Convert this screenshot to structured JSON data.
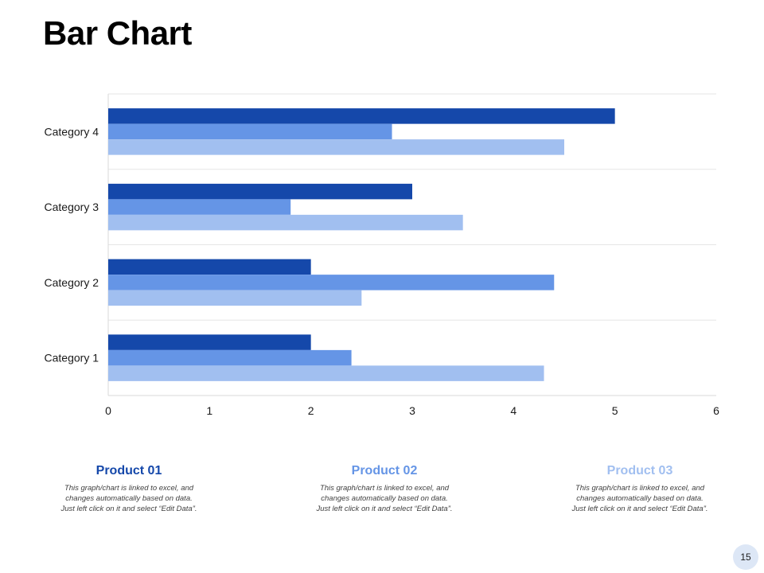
{
  "title": "Bar Chart",
  "chart_data": {
    "type": "bar",
    "orientation": "horizontal",
    "categories": [
      "Category 1",
      "Category 2",
      "Category 3",
      "Category 4"
    ],
    "series": [
      {
        "name": "Product 01",
        "color": "#1548aa",
        "values": [
          2,
          2,
          3,
          5
        ]
      },
      {
        "name": "Product 02",
        "color": "#6595e6",
        "values": [
          2.4,
          4.4,
          1.8,
          2.8
        ]
      },
      {
        "name": "Product 03",
        "color": "#a1bff0",
        "values": [
          4.3,
          2.5,
          3.5,
          4.5
        ]
      }
    ],
    "xlim": [
      0,
      6
    ],
    "xticks": [
      "0",
      "1",
      "2",
      "3",
      "4",
      "5",
      "6"
    ],
    "grid": true,
    "legend": "none"
  },
  "products": [
    {
      "name": "Product 01",
      "color": "#1548aa",
      "description": "This graph/chart is linked to excel, and\nchanges automatically based on data.\nJust left click on it and select “Edit Data”."
    },
    {
      "name": "Product 02",
      "color": "#6595e6",
      "description": "This graph/chart is linked to excel, and\nchanges automatically based on data.\nJust left click on it and select “Edit Data”."
    },
    {
      "name": "Product 03",
      "color": "#a1bff0",
      "description": "This graph/chart is linked to excel, and\nchanges automatically based on data.\nJust left click on it and select “Edit Data”."
    }
  ],
  "page_number": "15"
}
